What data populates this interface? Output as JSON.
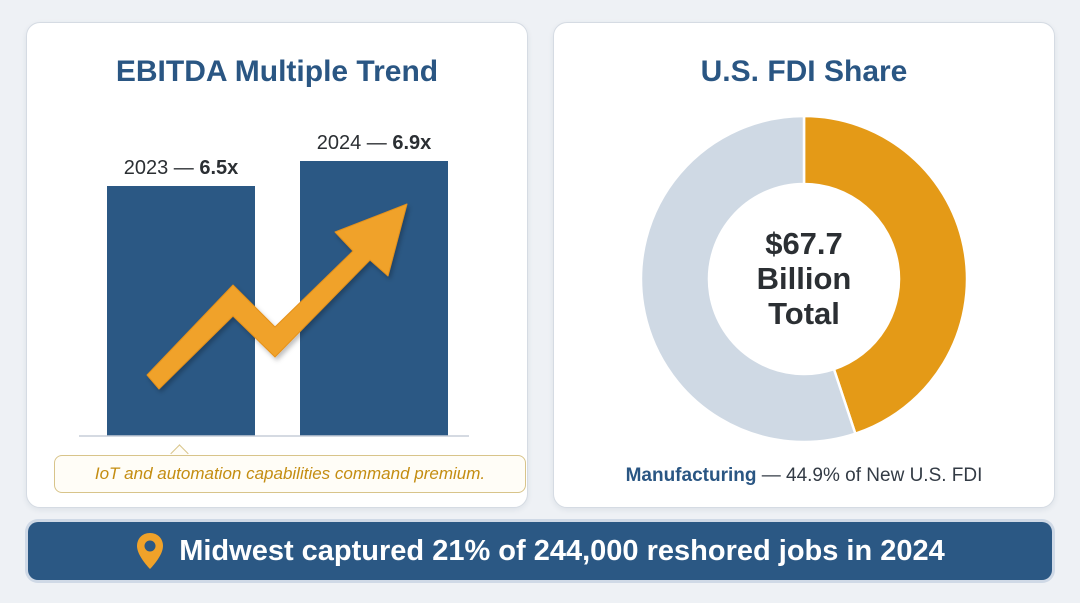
{
  "left_card": {
    "title": "EBITDA Multiple Trend",
    "caption": "IoT and automation capabilities command premium."
  },
  "right_card": {
    "title": "U.S. FDI Share",
    "center_line1": "$67.7",
    "center_line2": "Billion",
    "center_line3": "Total",
    "legend_name": "Manufacturing",
    "legend_rest": " — 44.9% of New U.S. FDI"
  },
  "banner": {
    "text": "Midwest captured 21% of 244,000 reshored jobs in 2024",
    "icon": "map-pin-icon"
  },
  "colors": {
    "bar": "#2b5884",
    "arrow": "#f0a229",
    "slice": "#e49a17",
    "rest": "#cfd9e4",
    "title": "#2a5683"
  },
  "chart_data": [
    {
      "type": "bar",
      "title": "EBITDA Multiple Trend",
      "categories": [
        "2023",
        "2024"
      ],
      "values": [
        6.5,
        6.9
      ],
      "data_labels": [
        {
          "year": "2023",
          "sep": " — ",
          "value": "6.5x"
        },
        {
          "year": "2024",
          "sep": " — ",
          "value": "6.9x"
        }
      ],
      "annotation": "upward trend arrow"
    },
    {
      "type": "pie",
      "title": "U.S. FDI Share",
      "slices": [
        {
          "name": "Manufacturing",
          "value": 44.9
        },
        {
          "name": "",
          "value": 55.1
        }
      ],
      "donut": true,
      "center_text": "$67.7 Billion Total"
    }
  ]
}
